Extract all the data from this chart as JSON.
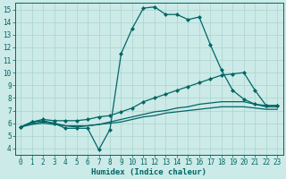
{
  "title": "",
  "xlabel": "Humidex (Indice chaleur)",
  "ylabel": "",
  "background_color": "#cceae7",
  "grid_color": "#aad4d0",
  "line_color": "#006666",
  "xlim": [
    -0.5,
    23.5
  ],
  "ylim": [
    3.5,
    15.5
  ],
  "xticks": [
    0,
    1,
    2,
    3,
    4,
    5,
    6,
    7,
    8,
    9,
    10,
    11,
    12,
    13,
    14,
    15,
    16,
    17,
    18,
    19,
    20,
    21,
    22,
    23
  ],
  "yticks": [
    4,
    5,
    6,
    7,
    8,
    9,
    10,
    11,
    12,
    13,
    14,
    15
  ],
  "line1_x": [
    0,
    1,
    2,
    3,
    4,
    5,
    6,
    7,
    8,
    9,
    10,
    11,
    12,
    13,
    14,
    15,
    16,
    17,
    18,
    19,
    20,
    21,
    22,
    23
  ],
  "line1_y": [
    5.7,
    6.1,
    6.2,
    6.0,
    5.6,
    5.6,
    5.6,
    3.9,
    5.5,
    11.5,
    13.5,
    15.1,
    15.2,
    14.6,
    14.6,
    14.2,
    14.4,
    12.2,
    10.2,
    8.6,
    7.9,
    7.5,
    7.4,
    7.4
  ],
  "line2_x": [
    0,
    1,
    2,
    3,
    4,
    5,
    6,
    7,
    8,
    9,
    10,
    11,
    12,
    13,
    14,
    15,
    16,
    17,
    18,
    19,
    20,
    21,
    22,
    23
  ],
  "line2_y": [
    5.7,
    6.1,
    6.3,
    6.2,
    6.2,
    6.2,
    6.3,
    6.5,
    6.6,
    6.9,
    7.2,
    7.7,
    8.0,
    8.3,
    8.6,
    8.9,
    9.2,
    9.5,
    9.8,
    9.9,
    10.0,
    8.6,
    7.4,
    7.4
  ],
  "line3_x": [
    0,
    1,
    2,
    3,
    4,
    5,
    6,
    7,
    8,
    9,
    10,
    11,
    12,
    13,
    14,
    15,
    16,
    17,
    18,
    19,
    20,
    21,
    22,
    23
  ],
  "line3_y": [
    5.7,
    6.0,
    6.1,
    6.0,
    5.8,
    5.7,
    5.8,
    5.9,
    6.1,
    6.3,
    6.5,
    6.7,
    6.9,
    7.0,
    7.2,
    7.3,
    7.5,
    7.6,
    7.7,
    7.7,
    7.7,
    7.5,
    7.3,
    7.3
  ],
  "line4_x": [
    0,
    1,
    2,
    3,
    4,
    5,
    6,
    7,
    8,
    9,
    10,
    11,
    12,
    13,
    14,
    15,
    16,
    17,
    18,
    19,
    20,
    21,
    22,
    23
  ],
  "line4_y": [
    5.7,
    5.9,
    6.0,
    5.9,
    5.8,
    5.8,
    5.8,
    5.9,
    6.0,
    6.1,
    6.3,
    6.5,
    6.6,
    6.8,
    6.9,
    7.0,
    7.1,
    7.2,
    7.3,
    7.3,
    7.3,
    7.2,
    7.1,
    7.1
  ],
  "tick_fontsize": 5.5,
  "xlabel_fontsize": 6.5
}
